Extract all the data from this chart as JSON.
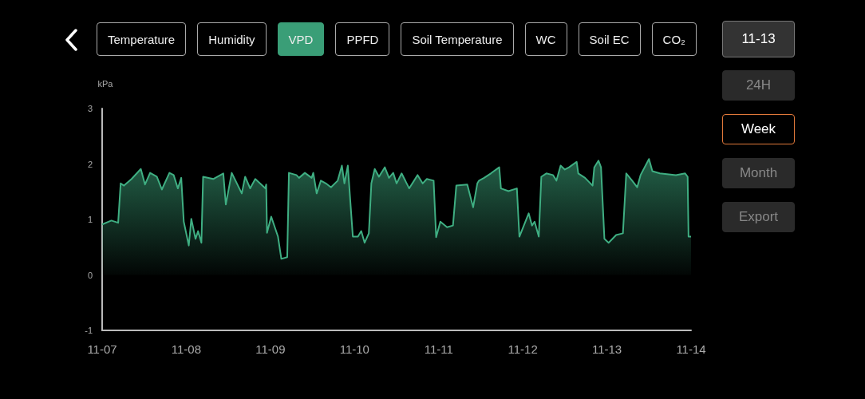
{
  "chart_data": {
    "type": "area",
    "ylabel": "kPa",
    "annotations": [
      "Temperature",
      "Humidity",
      "VPD",
      "PPFD",
      "Soil Temperature",
      "WC",
      "Soil EC",
      "CO₂",
      "11-13",
      "24H",
      "Week",
      "Month",
      "Export"
    ],
    "x": [
      "--11-07T00:00",
      "--11-07T02:38",
      "--11-07T04:34",
      "--11-07T05:17",
      "--11-07T06:14",
      "--11-07T08:24",
      "--11-07T11:02",
      "--11-07T12:14",
      "--11-07T13:41",
      "--11-07T15:36",
      "--11-07T17:02",
      "--11-07T19:12",
      "--11-07T20:24",
      "--11-07T21:36",
      "--11-07T22:34",
      "--11-07T23:17",
      "--11-08T00:43",
      "--11-08T01:26",
      "--11-08T02:38",
      "--11-08T03:22",
      "--11-08T04:19",
      "--11-08T04:48",
      "--11-08T07:41",
      "--11-08T10:34",
      "--11-08T11:17",
      "--11-08T12:58",
      "--11-08T15:50",
      "--11-08T16:48",
      "--11-08T18:14",
      "--11-08T19:41",
      "--11-08T22:34",
      "--11-08T22:48",
      "--11-08T23:02",
      "--11-09T00:14",
      "--11-09T02:10",
      "--11-09T03:07",
      "--11-09T04:48",
      "--11-09T05:17",
      "--11-09T07:26",
      "--11-09T08:10",
      "--11-09T09:50",
      "--11-09T11:46",
      "--11-09T12:14",
      "--11-09T13:12",
      "--11-09T14:24",
      "--11-09T15:50",
      "--11-09T17:17",
      "--11-09T19:12",
      "--11-09T20:24",
      "--11-09T21:07",
      "--11-09T22:05",
      "--11-09T23:31",
      "--11-10T00:58",
      "--11-10T01:55",
      "--11-10T02:53",
      "--11-10T04:05",
      "--11-10T04:48",
      "--11-10T05:46",
      "--11-10T06:58",
      "--11-10T08:38",
      "--11-10T09:50",
      "--11-10T11:02",
      "--11-10T12:00",
      "--11-10T13:26",
      "--11-10T15:36",
      "--11-10T18:00",
      "--11-10T19:26",
      "--11-10T20:38",
      "--11-10T22:34",
      "--11-10T23:17",
      "--11-11T00:29",
      "--11-11T02:24",
      "--11-11T04:05",
      "--11-11T05:02",
      "--11-11T08:10",
      "--11-11T09:50",
      "--11-11T11:02",
      "--11-11T11:31",
      "--11-11T12:58",
      "--11-11T14:53",
      "--11-11T17:17",
      "--11-11T17:46",
      "--11-11T19:55",
      "--11-11T22:19",
      "--11-11T23:02",
      "--11-12T01:41",
      "--11-12T02:38",
      "--11-12T03:22",
      "--11-12T04:34",
      "--11-12T05:17",
      "--11-12T06:43",
      "--11-12T08:38",
      "--11-12T09:36",
      "--11-12T10:48",
      "--11-12T12:00",
      "--11-12T13:12",
      "--11-12T15:22",
      "--11-12T15:50",
      "--11-12T17:46",
      "--11-12T19:55",
      "--11-12T20:24",
      "--11-12T21:36",
      "--11-12T22:19",
      "--11-12T23:17",
      "--11-13T00:29",
      "--11-13T02:38",
      "--11-13T04:34",
      "--11-13T05:31",
      "--11-13T07:12",
      "--11-13T08:38",
      "--11-13T09:36",
      "--11-13T12:00",
      "--11-13T12:58",
      "--11-13T15:07",
      "--11-13T19:41",
      "--11-13T22:19",
      "--11-13T23:02",
      "--11-13T23:17",
      "--11-14T00:00"
    ],
    "series": [
      {
        "color": "#3fae82",
        "values": [
          0.91,
          0.98,
          0.94,
          1.65,
          1.61,
          1.73,
          1.91,
          1.63,
          1.84,
          1.77,
          1.54,
          1.84,
          1.8,
          1.56,
          1.75,
          0.96,
          0.53,
          1.01,
          0.65,
          0.79,
          0.58,
          1.77,
          1.73,
          1.83,
          1.27,
          1.84,
          1.47,
          1.77,
          1.56,
          1.73,
          1.56,
          1.63,
          0.76,
          1.05,
          0.69,
          0.29,
          0.32,
          1.84,
          1.8,
          1.75,
          1.84,
          1.75,
          1.84,
          1.47,
          1.7,
          1.65,
          1.58,
          1.7,
          1.97,
          1.65,
          1.97,
          0.69,
          0.69,
          0.79,
          0.58,
          0.75,
          1.65,
          1.91,
          1.77,
          1.94,
          1.75,
          1.84,
          1.65,
          1.83,
          1.56,
          1.8,
          1.65,
          1.73,
          1.7,
          0.68,
          0.96,
          0.86,
          0.89,
          1.61,
          1.63,
          1.22,
          1.65,
          1.7,
          1.75,
          1.83,
          1.94,
          1.56,
          1.51,
          1.56,
          0.69,
          1.11,
          0.89,
          0.96,
          0.69,
          1.77,
          1.83,
          1.8,
          1.7,
          1.97,
          1.9,
          1.94,
          2.04,
          1.83,
          1.75,
          1.61,
          1.94,
          2.06,
          1.94,
          0.65,
          0.58,
          0.72,
          0.75,
          1.83,
          1.7,
          1.58,
          1.8,
          2.09,
          1.87,
          1.83,
          1.8,
          1.83,
          1.77,
          0.69,
          0.69
        ]
      }
    ],
    "xlim": [
      "--11-07",
      "--11-14"
    ],
    "xticks": [
      {
        "value": "--11-07",
        "label": "11-07"
      },
      {
        "value": "--11-08",
        "label": "11-08"
      },
      {
        "value": "--11-09",
        "label": "11-09"
      },
      {
        "value": "--11-10",
        "label": "11-10"
      },
      {
        "value": "--11-11",
        "label": "11-11"
      },
      {
        "value": "--11-12",
        "label": "11-12"
      },
      {
        "value": "--11-13",
        "label": "11-13"
      },
      {
        "value": "--11-14",
        "label": "11-14"
      }
    ],
    "ylim": [
      -1,
      3
    ],
    "yticks": [
      -1,
      0,
      1,
      2,
      3
    ],
    "marker": "none"
  }
}
